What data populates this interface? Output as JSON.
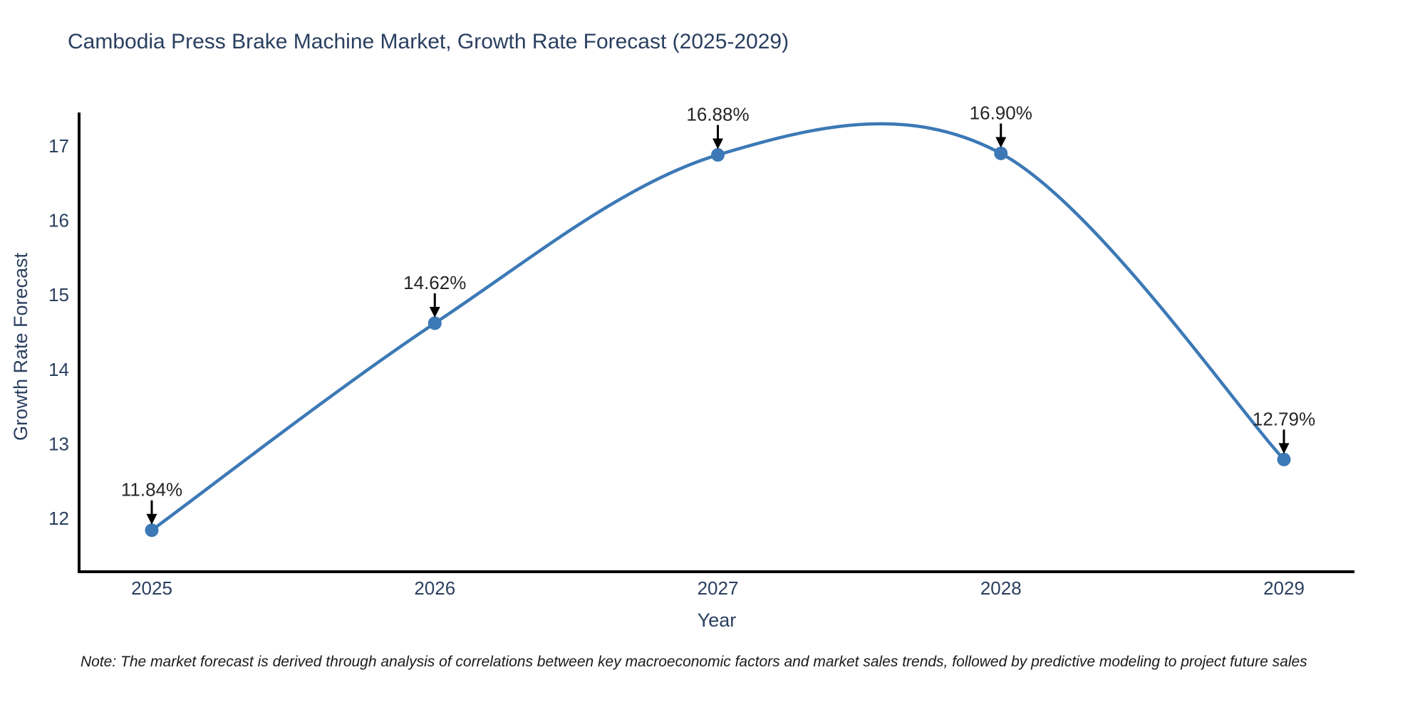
{
  "title": "Cambodia Press Brake Machine Market, Growth Rate Forecast (2025-2029)",
  "note": "Note: The market forecast is derived through analysis of correlations between key macroeconomic factors and market sales trends, followed by predictive modeling to project future sales",
  "chart_data": {
    "type": "line",
    "title": "Cambodia Press Brake Machine Market, Growth Rate Forecast (2025-2029)",
    "xlabel": "Year",
    "ylabel": "Growth Rate Forecast",
    "x": [
      2025,
      2026,
      2027,
      2028,
      2029
    ],
    "values": [
      11.84,
      14.62,
      16.88,
      16.9,
      12.79
    ],
    "point_labels": [
      "11.84%",
      "14.62%",
      "16.88%",
      "16.90%",
      "12.79%"
    ],
    "yticks": [
      12,
      13,
      14,
      15,
      16,
      17
    ],
    "ylim": [
      11.3,
      17.45
    ],
    "xlim": [
      2024.75,
      2029.25
    ],
    "line_shape": "spline",
    "grid": false,
    "legend": "none",
    "colors": {
      "line": "#3c79b6",
      "marker": "#3c79b6",
      "axis": "#000000",
      "tick_label": "#2a3f5f",
      "axis_title": "#2a3f5f",
      "title": "#2a3f5f",
      "annotation_text": "#262626",
      "annotation_arrow": "#000000",
      "background": "#ffffff"
    }
  }
}
